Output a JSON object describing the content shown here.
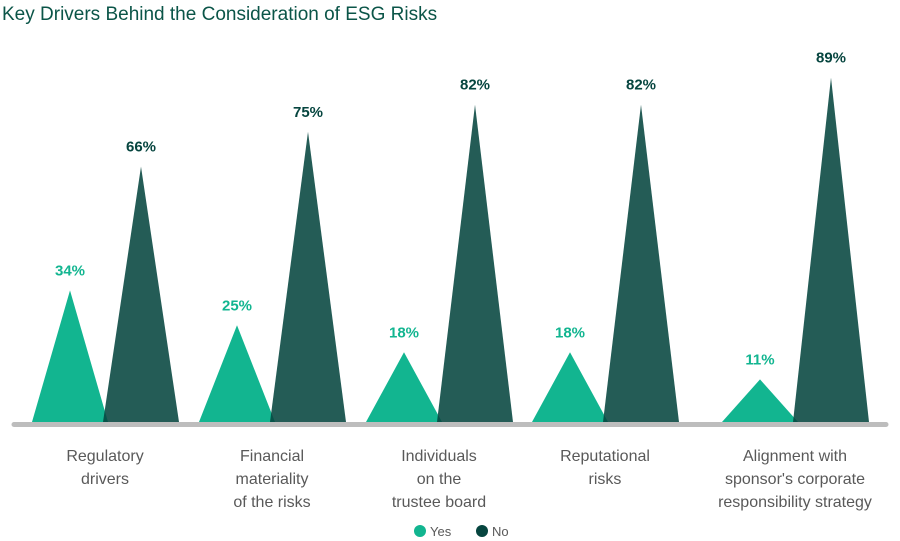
{
  "chart_data": {
    "type": "bar",
    "title": "Key Drivers Behind the Consideration of ESG Risks",
    "categories": [
      [
        "Regulatory",
        "drivers"
      ],
      [
        "Financial",
        "materiality",
        "of the risks"
      ],
      [
        "Individuals",
        "on the",
        "trustee board"
      ],
      [
        "Reputational",
        "risks"
      ],
      [
        "Alignment with",
        "sponsor's corporate",
        "responsibility strategy"
      ]
    ],
    "series": [
      {
        "name": "Yes",
        "color": "#12b590",
        "values": [
          34,
          25,
          18,
          18,
          11
        ],
        "labels": [
          "34%",
          "25%",
          "18%",
          "18%",
          "11%"
        ]
      },
      {
        "name": "No",
        "color": "#06453f",
        "values": [
          66,
          75,
          82,
          82,
          89
        ],
        "labels": [
          "66%",
          "75%",
          "82%",
          "82%",
          "89%"
        ]
      }
    ],
    "ylim": [
      0,
      100
    ],
    "legend_position": "bottom-center",
    "grid": false
  }
}
